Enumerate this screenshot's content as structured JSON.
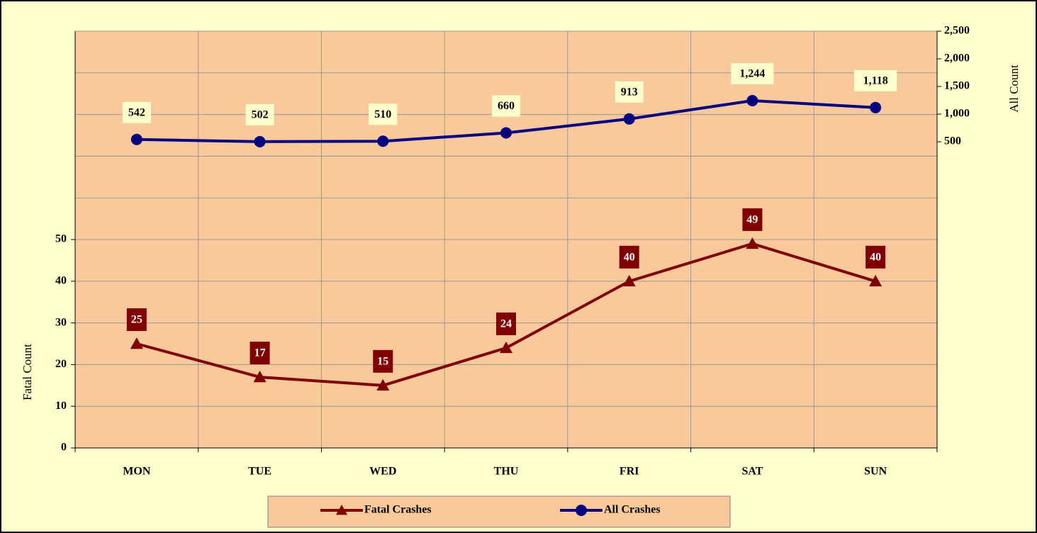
{
  "chart_data": {
    "type": "line",
    "categories": [
      "MON",
      "TUE",
      "WED",
      "THU",
      "FRI",
      "SAT",
      "SUN"
    ],
    "series": [
      {
        "name": "Fatal Crashes",
        "color": "#800000",
        "values": [
          25,
          17,
          15,
          24,
          40,
          49,
          40
        ]
      },
      {
        "name": "All Crashes",
        "color": "#000080",
        "axis": "y2",
        "values": [
          542,
          502,
          510,
          660,
          913,
          1244,
          1118
        ],
        "value_labels": [
          "542",
          "502",
          "510",
          "660",
          "913",
          "1,244",
          "1,118"
        ]
      }
    ],
    "ylabel": "Fatal Count",
    "y2label": "All Count",
    "ylim": [
      0,
      100
    ],
    "yticks": [
      0,
      10,
      20,
      30,
      40,
      50
    ],
    "ygrid": [
      0,
      10,
      20,
      30,
      40,
      50,
      60,
      70,
      80,
      90,
      100
    ],
    "y2lim": [
      -5038,
      2500
    ],
    "y2ticks": [
      {
        "value": 500,
        "label": "500"
      },
      {
        "value": 1000,
        "label": "1,000"
      },
      {
        "value": 1500,
        "label": "1,500"
      },
      {
        "value": 2000,
        "label": "2,000"
      },
      {
        "value": 2500,
        "label": "2,500"
      }
    ],
    "grid": true,
    "legend": "bottom"
  }
}
